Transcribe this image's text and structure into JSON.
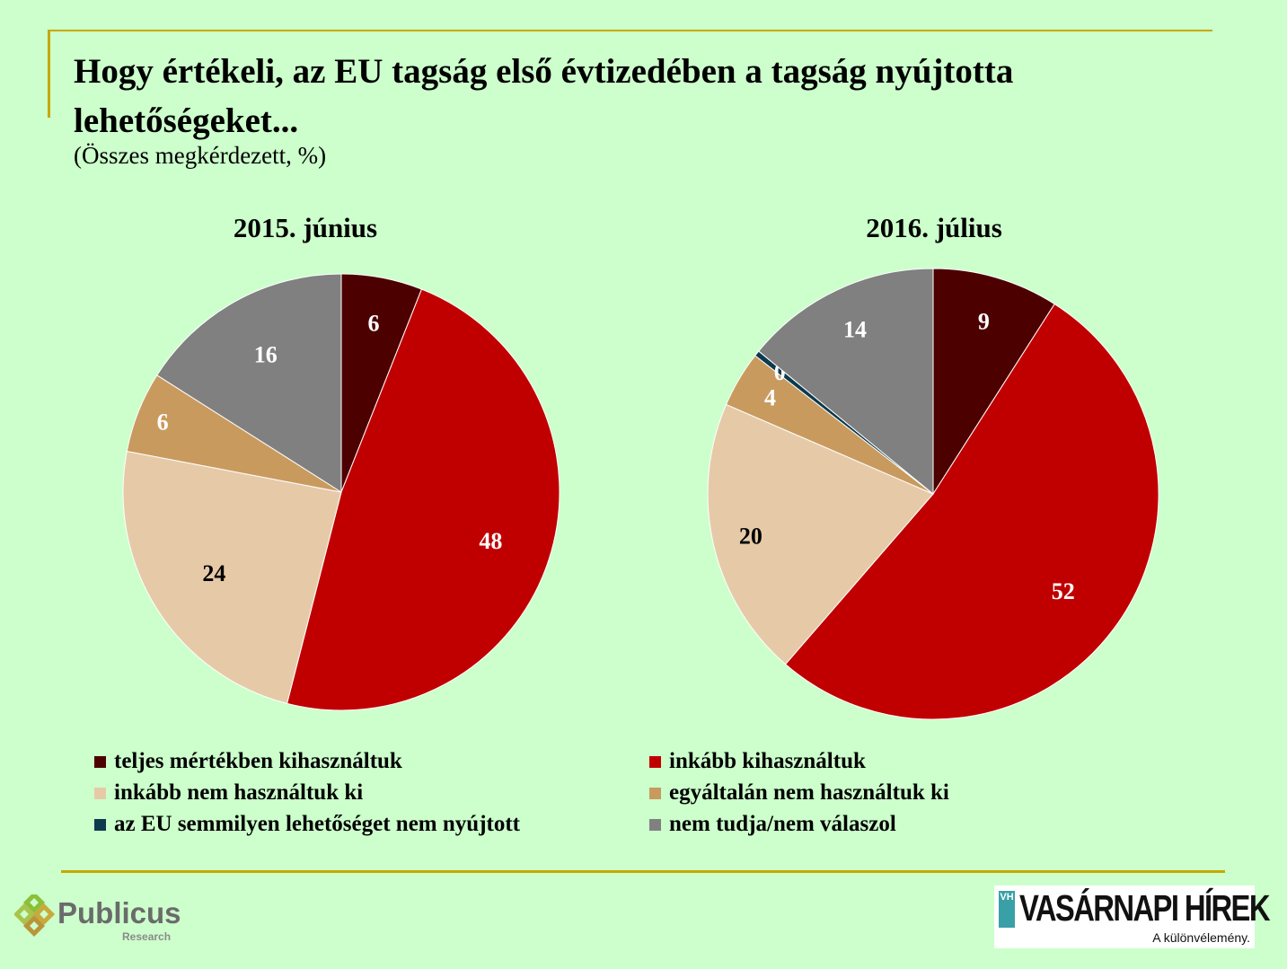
{
  "header": {
    "title": "Hogy értékeli, az EU tagság első évtizedében a tagság nyújtotta lehetőségeket...",
    "subtitle": "(Összes megkérdezett, %)"
  },
  "chart_data": [
    {
      "type": "pie",
      "title": "2015. június",
      "slices": [
        {
          "label": "teljes mértékben kihasználtuk",
          "value": 6,
          "color": "#4d0000",
          "label_color": "#ffffff"
        },
        {
          "label": "inkább kihasználtuk",
          "value": 48,
          "color": "#c00000",
          "label_color": "#ffffff"
        },
        {
          "label": "inkább nem használtuk ki",
          "value": 24,
          "color": "#e6caa8",
          "label_color": "#000000"
        },
        {
          "label": "egyáltalán nem használtuk ki",
          "value": 6,
          "color": "#c99a5e",
          "label_color": "#ffffff"
        },
        {
          "label": "nem tudja/nem válaszol",
          "value": 16,
          "color": "#808080",
          "label_color": "#ffffff"
        }
      ]
    },
    {
      "type": "pie",
      "title": "2016. július",
      "slices": [
        {
          "label": "teljes mértékben kihasználtuk",
          "value": 9,
          "color": "#4d0000",
          "label_color": "#ffffff"
        },
        {
          "label": "inkább kihasználtuk",
          "value": 52,
          "color": "#c00000",
          "label_color": "#ffffff"
        },
        {
          "label": "inkább nem használtuk ki",
          "value": 20,
          "color": "#e6caa8",
          "label_color": "#000000"
        },
        {
          "label": "egyáltalán nem használtuk ki",
          "value": 4,
          "color": "#c99a5e",
          "label_color": "#ffffff"
        },
        {
          "label": "az EU semmilyen lehetőséget nem nyújtott",
          "value": 0,
          "draw_value": 0.4,
          "color": "#0d3a4d",
          "label_color": "#ffffff"
        },
        {
          "label": "nem tudja/nem válaszol",
          "value": 14,
          "color": "#808080",
          "label_color": "#ffffff"
        }
      ]
    }
  ],
  "legend": [
    {
      "label": "teljes mértékben kihasználtuk",
      "color": "#4d0000"
    },
    {
      "label": "inkább kihasználtuk",
      "color": "#c00000"
    },
    {
      "label": "inkább nem használtuk ki",
      "color": "#e6caa8"
    },
    {
      "label": "egyáltalán nem használtuk ki",
      "color": "#c99a5e"
    },
    {
      "label": "az EU semmilyen lehetőséget nem nyújtott",
      "color": "#0d3a4d"
    },
    {
      "label": "nem tudja/nem válaszol",
      "color": "#808080"
    }
  ],
  "logos": {
    "publicus_name": "Publicus",
    "publicus_sub": "Research",
    "vh_mark": "VH",
    "vh_name": "VASÁRNAPI HÍREK",
    "vh_slogan": "A különvélemény."
  }
}
